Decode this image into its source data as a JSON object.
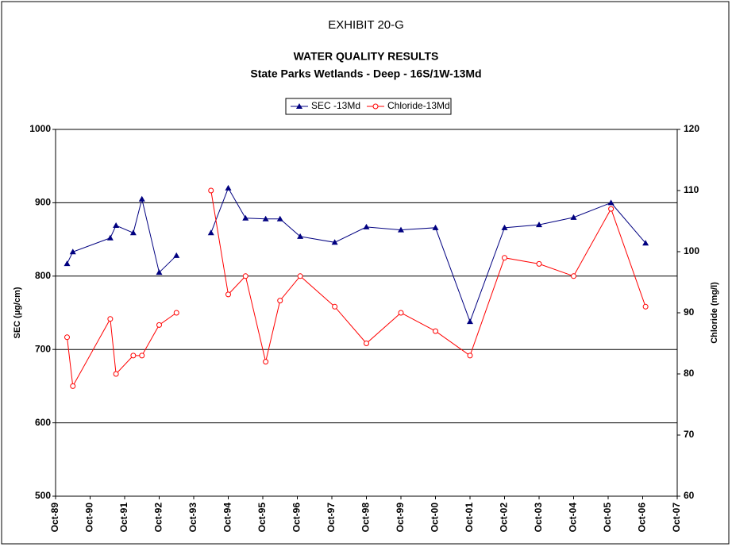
{
  "chart_data": {
    "type": "line",
    "title": "EXHIBIT 20-G",
    "subtitle": "WATER QUALITY RESULTS",
    "subtitle2": "State Parks Wetlands - Deep  - 16S/1W-13Md",
    "y_label": "SEC (µg/cm)",
    "y2_label": "Chloride (mg/l)",
    "x": [
      "1990-02",
      "1990-04",
      "1991-05",
      "1991-07",
      "1992-01",
      "1992-04",
      "1992-10",
      "1993-04",
      null,
      "1994-04",
      "1994-10",
      "1995-04",
      "1995-11",
      "1996-04",
      "1996-11",
      "1997-11",
      "1998-10",
      "1999-10",
      "2000-10",
      "2001-10",
      "2002-10",
      "2003-10",
      "2004-10",
      "2005-11",
      "2006-11"
    ],
    "series": [
      {
        "name": "SEC -13Md",
        "color": "#000080",
        "marker": "triangle",
        "values": [
          817,
          833,
          852,
          869,
          859,
          905,
          805,
          828,
          null,
          859,
          920,
          879,
          878,
          878,
          854,
          846,
          867,
          863,
          866,
          738,
          866,
          870,
          880,
          900,
          845
        ]
      },
      {
        "name": "Chloride-13Md",
        "color": "#ff0000",
        "marker": "circle",
        "axis": "y2",
        "values": [
          86,
          78,
          89,
          80,
          83,
          83,
          88,
          90,
          null,
          110,
          93,
          96,
          82,
          92,
          96,
          91,
          85,
          90,
          87,
          83,
          99,
          98,
          96,
          107,
          91
        ]
      }
    ],
    "xlim": [
      "1989-10",
      "2007-10"
    ],
    "xticks": [
      {
        "value": "1989-10",
        "label": "Oct-89"
      },
      {
        "value": "1990-10",
        "label": "Oct-90"
      },
      {
        "value": "1991-10",
        "label": "Oct-91"
      },
      {
        "value": "1992-10",
        "label": "Oct-92"
      },
      {
        "value": "1993-10",
        "label": "Oct-93"
      },
      {
        "value": "1994-10",
        "label": "Oct-94"
      },
      {
        "value": "1995-10",
        "label": "Oct-95"
      },
      {
        "value": "1996-10",
        "label": "Oct-96"
      },
      {
        "value": "1997-10",
        "label": "Oct-97"
      },
      {
        "value": "1998-10",
        "label": "Oct-98"
      },
      {
        "value": "1999-10",
        "label": "Oct-99"
      },
      {
        "value": "2000-10",
        "label": "Oct-00"
      },
      {
        "value": "2001-10",
        "label": "Oct-01"
      },
      {
        "value": "2002-10",
        "label": "Oct-02"
      },
      {
        "value": "2003-10",
        "label": "Oct-03"
      },
      {
        "value": "2004-10",
        "label": "Oct-04"
      },
      {
        "value": "2005-10",
        "label": "Oct-05"
      },
      {
        "value": "2006-10",
        "label": "Oct-06"
      },
      {
        "value": "2007-10",
        "label": "Oct-07"
      }
    ],
    "ylim": [
      500,
      1000
    ],
    "yticks": [
      500,
      600,
      700,
      800,
      900,
      1000
    ],
    "y2lim": [
      60,
      120
    ],
    "y2ticks": [
      60,
      70,
      80,
      90,
      100,
      110,
      120
    ],
    "grid": true,
    "legend": "top"
  }
}
